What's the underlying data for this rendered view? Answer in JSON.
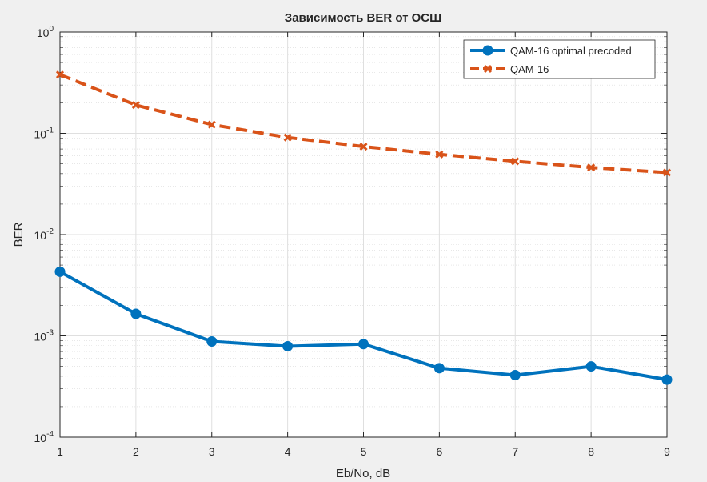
{
  "chart_data": {
    "type": "line",
    "title": "Зависимость BER от ОСШ",
    "xlabel": "Eb/No, dB",
    "ylabel": "BER",
    "x": [
      1,
      2,
      3,
      4,
      5,
      6,
      7,
      8,
      9
    ],
    "xlim": [
      1,
      9
    ],
    "ylim": [
      0.0001,
      1
    ],
    "yscale": "log",
    "x_ticks": [
      "1",
      "2",
      "3",
      "4",
      "5",
      "6",
      "7",
      "8",
      "9"
    ],
    "y_ticks": [
      {
        "value": 1,
        "base": "10",
        "exp": "0"
      },
      {
        "value": 0.1,
        "base": "10",
        "exp": "-1"
      },
      {
        "value": 0.01,
        "base": "10",
        "exp": "-2"
      },
      {
        "value": 0.001,
        "base": "10",
        "exp": "-3"
      },
      {
        "value": 0.0001,
        "base": "10",
        "exp": "-4"
      }
    ],
    "grid": true,
    "minor_grid": true,
    "legend_position": "top-right",
    "series": [
      {
        "name": "QAM-16 optimal precoded",
        "values": [
          0.0043,
          0.00165,
          0.00088,
          0.00079,
          0.00083,
          0.00048,
          0.00041,
          0.0005,
          0.00037
        ],
        "color": "#0072bd",
        "line_style": "solid",
        "marker": "circle"
      },
      {
        "name": "QAM-16",
        "values": [
          0.38,
          0.19,
          0.122,
          0.091,
          0.074,
          0.062,
          0.053,
          0.046,
          0.041
        ],
        "color": "#d95319",
        "line_style": "dashed",
        "marker": "x"
      }
    ]
  }
}
